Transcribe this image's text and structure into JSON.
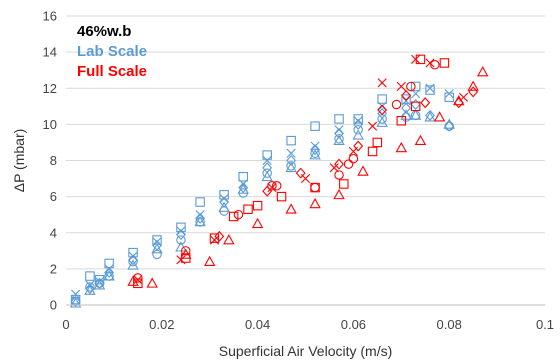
{
  "chart_data": {
    "type": "scatter",
    "title": "",
    "xlabel": "Superficial Air Velocity (m/s)",
    "ylabel": "ΔP (mbar)",
    "xlim": [
      0,
      0.1
    ],
    "ylim": [
      0,
      16
    ],
    "x_ticks": [
      "0",
      "0.02",
      "0.04",
      "0.06",
      "0.08",
      "0.1"
    ],
    "y_ticks": [
      "0",
      "2",
      "4",
      "6",
      "8",
      "10",
      "12",
      "14",
      "16"
    ],
    "grid": "horizontal",
    "legend_position": "top-left",
    "legend": [
      {
        "label": "46%w.b",
        "color": "#000000"
      },
      {
        "label": "Lab Scale",
        "color": "#5b9bd5"
      },
      {
        "label": "Full Scale",
        "color": "#ff0000"
      }
    ],
    "series": [
      {
        "group": "Lab Scale",
        "marker": "square",
        "color": "#5b9bd5",
        "points": [
          [
            0.002,
            0.3
          ],
          [
            0.005,
            1.6
          ],
          [
            0.007,
            1.4
          ],
          [
            0.009,
            2.3
          ],
          [
            0.014,
            2.9
          ],
          [
            0.019,
            3.6
          ],
          [
            0.024,
            4.3
          ],
          [
            0.028,
            5.7
          ],
          [
            0.033,
            6.1
          ],
          [
            0.037,
            7.1
          ],
          [
            0.042,
            8.3
          ],
          [
            0.047,
            9.1
          ],
          [
            0.052,
            9.9
          ],
          [
            0.057,
            10.3
          ],
          [
            0.061,
            10.3
          ],
          [
            0.066,
            11.4
          ],
          [
            0.071,
            11.4
          ],
          [
            0.073,
            12.1
          ],
          [
            0.076,
            11.9
          ],
          [
            0.08,
            11.5
          ]
        ]
      },
      {
        "group": "Lab Scale",
        "marker": "x",
        "color": "#5b9bd5",
        "points": [
          [
            0.002,
            0.6
          ],
          [
            0.005,
            1.1
          ],
          [
            0.007,
            1.3
          ],
          [
            0.009,
            2.0
          ],
          [
            0.014,
            2.7
          ],
          [
            0.019,
            3.5
          ],
          [
            0.024,
            4.1
          ],
          [
            0.028,
            5.0
          ],
          [
            0.033,
            5.9
          ],
          [
            0.037,
            6.7
          ],
          [
            0.042,
            8.0
          ],
          [
            0.047,
            8.4
          ],
          [
            0.052,
            8.8
          ],
          [
            0.057,
            9.7
          ],
          [
            0.061,
            10.2
          ],
          [
            0.066,
            11.0
          ],
          [
            0.071,
            11.3
          ],
          [
            0.073,
            11.7
          ],
          [
            0.076,
            12.0
          ],
          [
            0.08,
            11.7
          ]
        ]
      },
      {
        "group": "Lab Scale",
        "marker": "triangle",
        "color": "#5b9bd5",
        "points": [
          [
            0.002,
            0.1
          ],
          [
            0.005,
            0.8
          ],
          [
            0.007,
            1.1
          ],
          [
            0.009,
            1.6
          ],
          [
            0.014,
            2.2
          ],
          [
            0.019,
            3.1
          ],
          [
            0.024,
            3.2
          ],
          [
            0.028,
            4.6
          ],
          [
            0.033,
            5.4
          ],
          [
            0.037,
            6.4
          ],
          [
            0.042,
            7.1
          ],
          [
            0.047,
            7.6
          ],
          [
            0.052,
            8.3
          ],
          [
            0.057,
            9.1
          ],
          [
            0.061,
            9.4
          ],
          [
            0.066,
            10.1
          ],
          [
            0.071,
            10.5
          ],
          [
            0.073,
            10.5
          ],
          [
            0.076,
            10.4
          ],
          [
            0.08,
            10.0
          ]
        ]
      },
      {
        "group": "Lab Scale",
        "marker": "diamond",
        "color": "#5b9bd5",
        "points": [
          [
            0.002,
            0.2
          ],
          [
            0.005,
            0.9
          ],
          [
            0.007,
            1.2
          ],
          [
            0.009,
            1.8
          ],
          [
            0.014,
            2.5
          ],
          [
            0.019,
            3.3
          ],
          [
            0.024,
            3.9
          ],
          [
            0.028,
            4.8
          ],
          [
            0.033,
            5.7
          ],
          [
            0.037,
            6.5
          ],
          [
            0.042,
            7.6
          ],
          [
            0.047,
            8.0
          ],
          [
            0.052,
            8.6
          ],
          [
            0.057,
            9.5
          ],
          [
            0.061,
            10.0
          ],
          [
            0.066,
            10.6
          ],
          [
            0.071,
            10.9
          ],
          [
            0.073,
            11.1
          ],
          [
            0.076,
            10.5
          ],
          [
            0.08,
            9.9
          ]
        ]
      },
      {
        "group": "Lab Scale",
        "marker": "circle",
        "color": "#5b9bd5",
        "points": [
          [
            0.002,
            0.2
          ],
          [
            0.005,
            1.0
          ],
          [
            0.007,
            1.2
          ],
          [
            0.009,
            1.6
          ],
          [
            0.014,
            2.4
          ],
          [
            0.019,
            2.8
          ],
          [
            0.024,
            3.6
          ],
          [
            0.028,
            4.6
          ],
          [
            0.033,
            5.2
          ],
          [
            0.037,
            6.2
          ],
          [
            0.042,
            7.3
          ],
          [
            0.047,
            7.7
          ],
          [
            0.052,
            8.4
          ],
          [
            0.057,
            9.2
          ],
          [
            0.061,
            9.7
          ],
          [
            0.066,
            10.3
          ],
          [
            0.071,
            10.4
          ],
          [
            0.073,
            10.5
          ],
          [
            0.08,
            9.9
          ]
        ]
      },
      {
        "group": "Full Scale",
        "marker": "triangle",
        "color": "#ff0000",
        "points": [
          [
            0.014,
            1.3
          ],
          [
            0.018,
            1.2
          ],
          [
            0.025,
            2.8
          ],
          [
            0.03,
            2.4
          ],
          [
            0.034,
            3.6
          ],
          [
            0.04,
            4.5
          ],
          [
            0.047,
            5.3
          ],
          [
            0.052,
            5.6
          ],
          [
            0.057,
            6.1
          ],
          [
            0.062,
            7.4
          ],
          [
            0.07,
            8.7
          ],
          [
            0.074,
            9.1
          ],
          [
            0.078,
            10.4
          ],
          [
            0.082,
            11.3
          ],
          [
            0.085,
            12.1
          ],
          [
            0.087,
            12.9
          ]
        ]
      },
      {
        "group": "Full Scale",
        "marker": "square",
        "color": "#ff0000",
        "points": [
          [
            0.015,
            1.2
          ],
          [
            0.025,
            2.6
          ],
          [
            0.031,
            3.7
          ],
          [
            0.035,
            4.9
          ],
          [
            0.038,
            5.3
          ],
          [
            0.04,
            5.5
          ],
          [
            0.045,
            6.0
          ],
          [
            0.052,
            6.5
          ],
          [
            0.058,
            6.7
          ],
          [
            0.064,
            8.5
          ],
          [
            0.065,
            9.0
          ],
          [
            0.07,
            10.2
          ],
          [
            0.073,
            11.0
          ],
          [
            0.074,
            13.6
          ],
          [
            0.079,
            13.4
          ]
        ]
      },
      {
        "group": "Full Scale",
        "marker": "x",
        "color": "#ff0000",
        "points": [
          [
            0.015,
            1.4
          ],
          [
            0.024,
            2.5
          ],
          [
            0.031,
            3.6
          ],
          [
            0.043,
            6.5
          ],
          [
            0.05,
            7.0
          ],
          [
            0.056,
            7.6
          ],
          [
            0.06,
            8.5
          ],
          [
            0.064,
            9.9
          ],
          [
            0.066,
            12.3
          ],
          [
            0.07,
            12.1
          ],
          [
            0.073,
            13.6
          ],
          [
            0.076,
            13.4
          ],
          [
            0.083,
            11.5
          ]
        ]
      },
      {
        "group": "Full Scale",
        "marker": "diamond",
        "color": "#ff0000",
        "points": [
          [
            0.032,
            3.8
          ],
          [
            0.042,
            6.3
          ],
          [
            0.049,
            7.3
          ],
          [
            0.057,
            7.8
          ],
          [
            0.061,
            8.8
          ],
          [
            0.066,
            10.8
          ],
          [
            0.071,
            11.6
          ],
          [
            0.075,
            11.2
          ],
          [
            0.082,
            11.2
          ],
          [
            0.085,
            11.8
          ]
        ]
      },
      {
        "group": "Full Scale",
        "marker": "circle",
        "color": "#ff0000",
        "points": [
          [
            0.015,
            1.5
          ],
          [
            0.025,
            3.0
          ],
          [
            0.036,
            5.0
          ],
          [
            0.043,
            6.6
          ],
          [
            0.044,
            6.6
          ],
          [
            0.052,
            6.5
          ],
          [
            0.057,
            7.2
          ],
          [
            0.059,
            7.8
          ],
          [
            0.06,
            8.1
          ],
          [
            0.069,
            11.1
          ],
          [
            0.072,
            12.1
          ],
          [
            0.077,
            13.3
          ]
        ]
      }
    ]
  }
}
